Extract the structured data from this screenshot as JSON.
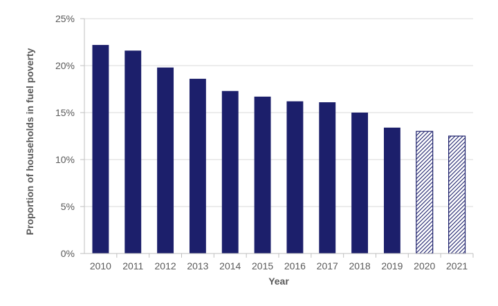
{
  "chart_data": {
    "type": "bar",
    "title": "",
    "xlabel": "Year",
    "ylabel": "Proportion of households in fuel poverty",
    "categories": [
      "2010",
      "2011",
      "2012",
      "2013",
      "2014",
      "2015",
      "2016",
      "2017",
      "2018",
      "2019",
      "2020",
      "2021"
    ],
    "values": [
      22.2,
      21.6,
      19.8,
      18.6,
      17.3,
      16.7,
      16.2,
      16.1,
      15.0,
      13.4,
      13.0,
      12.5
    ],
    "projected": [
      false,
      false,
      false,
      false,
      false,
      false,
      false,
      false,
      false,
      false,
      true,
      true
    ],
    "ylim": [
      0,
      25
    ],
    "yticks": [
      0,
      5,
      10,
      15,
      20,
      25
    ],
    "ytick_labels": [
      "0%",
      "5%",
      "10%",
      "15%",
      "20%",
      "25%"
    ],
    "grid": true,
    "legend": "none",
    "colors": {
      "bar": "#1c1f6b",
      "hatch": "#1c1f6b",
      "grid": "#d9d9d9",
      "axis": "#bfbfbf",
      "text": "#595959"
    }
  }
}
